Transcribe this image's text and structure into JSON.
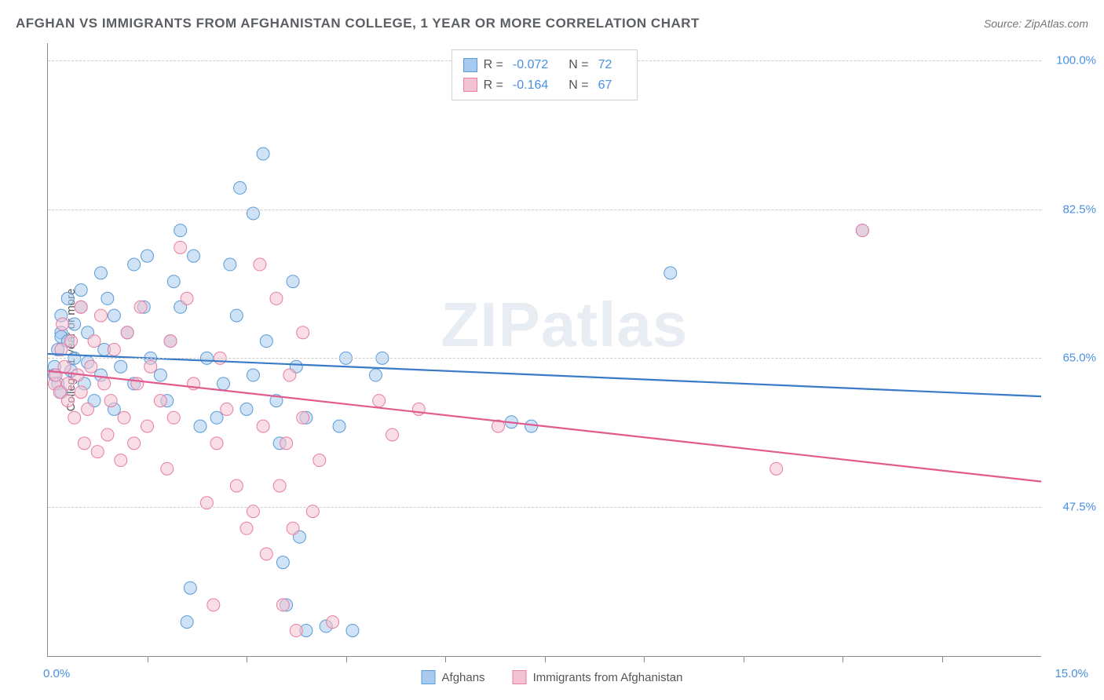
{
  "title": "AFGHAN VS IMMIGRANTS FROM AFGHANISTAN COLLEGE, 1 YEAR OR MORE CORRELATION CHART",
  "source": "Source: ZipAtlas.com",
  "watermark_part1": "ZIP",
  "watermark_part2": "atlas",
  "ylabel": "College, 1 year or more",
  "chart": {
    "type": "scatter",
    "xlim": [
      0,
      15
    ],
    "ylim": [
      30,
      102
    ],
    "x_left_label": "0.0%",
    "x_right_label": "15.0%",
    "xticks": [
      1.5,
      3.0,
      4.5,
      6.0,
      7.5,
      9.0,
      10.5,
      12.0,
      13.5
    ],
    "yticks": [
      {
        "value": 47.5,
        "label": "47.5%"
      },
      {
        "value": 65.0,
        "label": "65.0%"
      },
      {
        "value": 82.5,
        "label": "82.5%"
      },
      {
        "value": 100.0,
        "label": "100.0%"
      }
    ],
    "background_color": "#ffffff",
    "grid_color": "#cccccc",
    "marker_radius": 8,
    "marker_opacity": 0.55,
    "series": [
      {
        "name": "Afghans",
        "color_fill": "#a8caef",
        "color_stroke": "#5b9bd5",
        "trend_color": "#3a7bc8",
        "trend_width": 2.2,
        "R": "-0.072",
        "N": "72",
        "trend": {
          "x1": 0,
          "y1": 65.5,
          "x2": 15,
          "y2": 60.5
        },
        "points": [
          [
            0.1,
            64
          ],
          [
            0.1,
            63
          ],
          [
            0.15,
            62
          ],
          [
            0.15,
            66
          ],
          [
            0.2,
            68
          ],
          [
            0.2,
            70
          ],
          [
            0.2,
            67.5
          ],
          [
            0.2,
            61
          ],
          [
            0.3,
            72
          ],
          [
            0.3,
            67
          ],
          [
            0.35,
            63.5
          ],
          [
            0.4,
            65
          ],
          [
            0.4,
            69
          ],
          [
            0.5,
            71
          ],
          [
            0.5,
            73
          ],
          [
            0.55,
            62
          ],
          [
            0.6,
            64.5
          ],
          [
            0.6,
            68
          ],
          [
            0.7,
            60
          ],
          [
            0.8,
            75
          ],
          [
            0.8,
            63
          ],
          [
            0.85,
            66
          ],
          [
            0.9,
            72
          ],
          [
            1.0,
            70
          ],
          [
            1.0,
            59
          ],
          [
            1.1,
            64
          ],
          [
            1.2,
            68
          ],
          [
            1.3,
            62
          ],
          [
            1.3,
            76
          ],
          [
            1.45,
            71
          ],
          [
            1.5,
            77
          ],
          [
            1.55,
            65
          ],
          [
            1.7,
            63
          ],
          [
            1.8,
            60
          ],
          [
            1.85,
            67
          ],
          [
            1.9,
            74
          ],
          [
            2.0,
            80
          ],
          [
            2.0,
            71
          ],
          [
            2.1,
            34
          ],
          [
            2.15,
            38
          ],
          [
            2.2,
            77
          ],
          [
            2.3,
            57
          ],
          [
            2.4,
            65
          ],
          [
            2.55,
            58
          ],
          [
            2.65,
            62
          ],
          [
            2.75,
            76
          ],
          [
            2.85,
            70
          ],
          [
            2.9,
            85
          ],
          [
            3.0,
            59
          ],
          [
            3.1,
            63
          ],
          [
            3.1,
            82
          ],
          [
            3.25,
            89
          ],
          [
            3.3,
            67
          ],
          [
            3.45,
            60
          ],
          [
            3.5,
            55
          ],
          [
            3.55,
            41
          ],
          [
            3.6,
            36
          ],
          [
            3.7,
            74
          ],
          [
            3.75,
            64
          ],
          [
            3.8,
            44
          ],
          [
            3.9,
            33
          ],
          [
            3.9,
            58
          ],
          [
            4.2,
            33.5
          ],
          [
            4.4,
            57
          ],
          [
            4.5,
            65
          ],
          [
            4.6,
            33
          ],
          [
            4.95,
            63
          ],
          [
            5.05,
            65
          ],
          [
            7.0,
            57.5
          ],
          [
            7.3,
            57
          ],
          [
            9.4,
            75
          ],
          [
            12.3,
            80
          ]
        ]
      },
      {
        "name": "Immigrants from Afghanistan",
        "color_fill": "#f4c3d2",
        "color_stroke": "#e87da2",
        "trend_color": "#e15b8f",
        "trend_width": 2.2,
        "R": "-0.164",
        "N": "67",
        "trend": {
          "x1": 0,
          "y1": 63.5,
          "x2": 15,
          "y2": 50.5
        },
        "points": [
          [
            0.1,
            62
          ],
          [
            0.12,
            63
          ],
          [
            0.18,
            61
          ],
          [
            0.2,
            66
          ],
          [
            0.22,
            69
          ],
          [
            0.25,
            64
          ],
          [
            0.3,
            62
          ],
          [
            0.3,
            60
          ],
          [
            0.35,
            67
          ],
          [
            0.4,
            58
          ],
          [
            0.45,
            63
          ],
          [
            0.5,
            61
          ],
          [
            0.5,
            71
          ],
          [
            0.55,
            55
          ],
          [
            0.6,
            59
          ],
          [
            0.65,
            64
          ],
          [
            0.7,
            67
          ],
          [
            0.75,
            54
          ],
          [
            0.8,
            70
          ],
          [
            0.85,
            62
          ],
          [
            0.9,
            56
          ],
          [
            0.95,
            60
          ],
          [
            1.0,
            66
          ],
          [
            1.1,
            53
          ],
          [
            1.15,
            58
          ],
          [
            1.2,
            68
          ],
          [
            1.3,
            55
          ],
          [
            1.35,
            62
          ],
          [
            1.4,
            71
          ],
          [
            1.5,
            57
          ],
          [
            1.55,
            64
          ],
          [
            1.7,
            60
          ],
          [
            1.8,
            52
          ],
          [
            1.85,
            67
          ],
          [
            1.9,
            58
          ],
          [
            2.0,
            78
          ],
          [
            2.1,
            72
          ],
          [
            2.2,
            62
          ],
          [
            2.4,
            48
          ],
          [
            2.5,
            36
          ],
          [
            2.55,
            55
          ],
          [
            2.6,
            65
          ],
          [
            2.7,
            59
          ],
          [
            2.85,
            50
          ],
          [
            3.0,
            45
          ],
          [
            3.1,
            47
          ],
          [
            3.2,
            76
          ],
          [
            3.25,
            57
          ],
          [
            3.3,
            42
          ],
          [
            3.45,
            72
          ],
          [
            3.5,
            50
          ],
          [
            3.55,
            36
          ],
          [
            3.6,
            55
          ],
          [
            3.65,
            63
          ],
          [
            3.7,
            45
          ],
          [
            3.75,
            33
          ],
          [
            3.85,
            68
          ],
          [
            3.85,
            58
          ],
          [
            4.0,
            47
          ],
          [
            4.1,
            53
          ],
          [
            4.3,
            34
          ],
          [
            5.0,
            60
          ],
          [
            5.2,
            56
          ],
          [
            5.6,
            59
          ],
          [
            6.8,
            57
          ],
          [
            11.0,
            52
          ],
          [
            12.3,
            80
          ]
        ]
      }
    ]
  },
  "legend_top_label_R": "R =",
  "legend_top_label_N": "N ="
}
